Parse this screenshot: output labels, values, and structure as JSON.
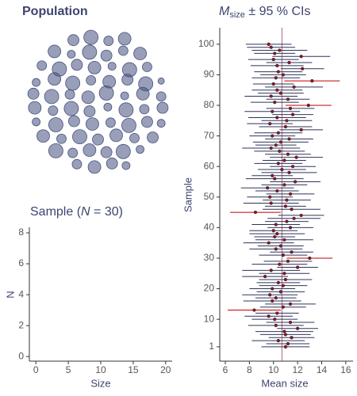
{
  "chart_data": [
    {
      "type": "bubble",
      "title": "Population",
      "color": "#46507e",
      "xlim": [
        -1,
        1
      ],
      "ylim": [
        -1,
        1
      ],
      "x": [
        -0.35,
        -0.1,
        0.15,
        0.38,
        -0.62,
        -0.38,
        -0.12,
        0.12,
        0.36,
        0.6,
        -0.8,
        -0.55,
        -0.3,
        -0.05,
        0.2,
        0.45,
        0.7,
        -0.88,
        -0.62,
        -0.36,
        -0.1,
        0.16,
        0.42,
        0.68,
        0.9,
        -0.92,
        -0.66,
        -0.4,
        -0.14,
        0.12,
        0.38,
        0.64,
        0.9,
        -0.9,
        -0.64,
        -0.38,
        -0.12,
        0.14,
        0.4,
        0.66,
        0.92,
        -0.88,
        -0.6,
        -0.34,
        -0.08,
        0.18,
        0.44,
        0.7,
        0.9,
        -0.78,
        -0.52,
        -0.26,
        0,
        0.26,
        0.52,
        0.78,
        -0.6,
        -0.36,
        -0.12,
        0.12,
        0.36,
        0.6,
        -0.3,
        -0.05,
        0.2,
        0.4
      ],
      "y": [
        0.88,
        0.92,
        0.87,
        0.9,
        0.72,
        0.68,
        0.71,
        0.66,
        0.73,
        0.69,
        0.52,
        0.47,
        0.53,
        0.49,
        0.51,
        0.46,
        0.5,
        0.28,
        0.33,
        0.27,
        0.31,
        0.29,
        0.32,
        0.26,
        0.3,
        0.12,
        0.08,
        0.11,
        0.07,
        0.13,
        0.09,
        0.12,
        0.08,
        -0.08,
        -0.12,
        -0.09,
        -0.13,
        -0.07,
        -0.11,
        -0.1,
        -0.08,
        -0.28,
        -0.32,
        -0.27,
        -0.31,
        -0.29,
        -0.33,
        -0.28,
        -0.3,
        -0.48,
        -0.52,
        -0.49,
        -0.53,
        -0.47,
        -0.51,
        -0.5,
        -0.69,
        -0.72,
        -0.68,
        -0.71,
        -0.7,
        -0.67,
        -0.88,
        -0.92,
        -0.87,
        -0.9
      ],
      "sizes": [
        7,
        9,
        6,
        8,
        8,
        5,
        9,
        7,
        6,
        8,
        6,
        9,
        7,
        8,
        5,
        9,
        6,
        5,
        8,
        9,
        6,
        8,
        7,
        9,
        4,
        7,
        9,
        6,
        8,
        9,
        5,
        8,
        6,
        8,
        6,
        9,
        7,
        5,
        9,
        6,
        7,
        5,
        9,
        7,
        8,
        6,
        9,
        7,
        5,
        8,
        6,
        9,
        7,
        8,
        6,
        7,
        9,
        6,
        8,
        7,
        9,
        5,
        6,
        8,
        7,
        5
      ]
    },
    {
      "type": "histogram",
      "title_parts": [
        "Sample (",
        "N",
        " = 30)"
      ],
      "xlabel": "Size",
      "ylabel": "N",
      "xlim": [
        -1,
        21
      ],
      "xticks": [
        0,
        5,
        10,
        15,
        20
      ],
      "ylim": [
        -0.3,
        8.36
      ],
      "yticks": [
        0,
        2,
        4,
        6,
        8
      ]
    },
    {
      "type": "errorbar",
      "title_parts": [
        "M",
        "size",
        " ± 95 % CIs"
      ],
      "xlabel": "Mean size",
      "ylabel": "Sample",
      "xlim": [
        5.54,
        16.6
      ],
      "xticks": [
        6,
        8,
        10,
        12,
        14,
        16
      ],
      "ylim": [
        -3.7,
        105.4
      ],
      "yticks": [
        1,
        10,
        20,
        30,
        40,
        50,
        60,
        70,
        80,
        90,
        100
      ],
      "reference": 10.7,
      "reference_color": "#b0607a",
      "color": "#2f3559",
      "highlight_color": "#c00000",
      "point_color": "#a0102a",
      "values": [
        11.0,
        11.2,
        10.4,
        11.5,
        11.0,
        10.9,
        12.0,
        10.2,
        11.4,
        10.1,
        9.6,
        10.3,
        8.4,
        10.8,
        11.4,
        9.9,
        10.2,
        9.7,
        10.6,
        9.9,
        10.8,
        10.4,
        11.0,
        9.3,
        10.9,
        9.8,
        12.0,
        10.5,
        11.2,
        13.0,
        10.8,
        11.5,
        10.2,
        10.6,
        9.6,
        10.9,
        10.1,
        10.3,
        10.0,
        11.4,
        10.2,
        11.1,
        11.7,
        12.3,
        8.5,
        11.5,
        11.0,
        9.8,
        11.1,
        9.7,
        11.4,
        10.3,
        9.5,
        10.9,
        11.8,
        10.1,
        9.9,
        11.3,
        10.7,
        11.6,
        10.4,
        10.9,
        11.9,
        11.2,
        10.5,
        9.8,
        10.2,
        10.6,
        11.3,
        9.9,
        10.4,
        12.3,
        11.0,
        9.7,
        11.1,
        10.3,
        11.6,
        9.9,
        11.4,
        12.9,
        10.1,
        11.2,
        9.8,
        10.6,
        10.3,
        11.7,
        10.0,
        13.2,
        10.2,
        10.8,
        10.4,
        12.4,
        10.3,
        11.3,
        10.0,
        12.3,
        10.1,
        10.5,
        9.8,
        9.6
      ],
      "errors": [
        2.0,
        1.8,
        2.2,
        1.9,
        2.1,
        2.4,
        1.7,
        2.3,
        2.0,
        1.9,
        2.0,
        1.8,
        2.2,
        1.9,
        2.1,
        2.4,
        1.7,
        2.3,
        2.0,
        1.9,
        2.0,
        1.8,
        2.2,
        1.9,
        2.1,
        2.4,
        1.7,
        2.3,
        2.0,
        1.9,
        2.0,
        1.8,
        2.2,
        1.9,
        2.1,
        2.4,
        1.7,
        2.3,
        2.0,
        1.9,
        2.0,
        1.8,
        2.2,
        1.9,
        2.1,
        2.4,
        1.7,
        2.3,
        2.0,
        1.9,
        2.0,
        1.8,
        2.2,
        1.9,
        2.1,
        2.4,
        1.7,
        2.3,
        2.0,
        1.9,
        2.0,
        1.8,
        2.2,
        1.9,
        2.1,
        2.4,
        1.7,
        2.3,
        2.0,
        1.9,
        2.0,
        1.8,
        2.2,
        1.9,
        2.1,
        2.4,
        1.7,
        2.3,
        2.0,
        1.9,
        2.0,
        1.8,
        2.2,
        1.9,
        2.1,
        2.4,
        1.7,
        2.3,
        2.0,
        1.9,
        2.0,
        1.8,
        2.2,
        1.9,
        2.1,
        2.4,
        1.7,
        2.3,
        2.0,
        1.9
      ]
    }
  ]
}
